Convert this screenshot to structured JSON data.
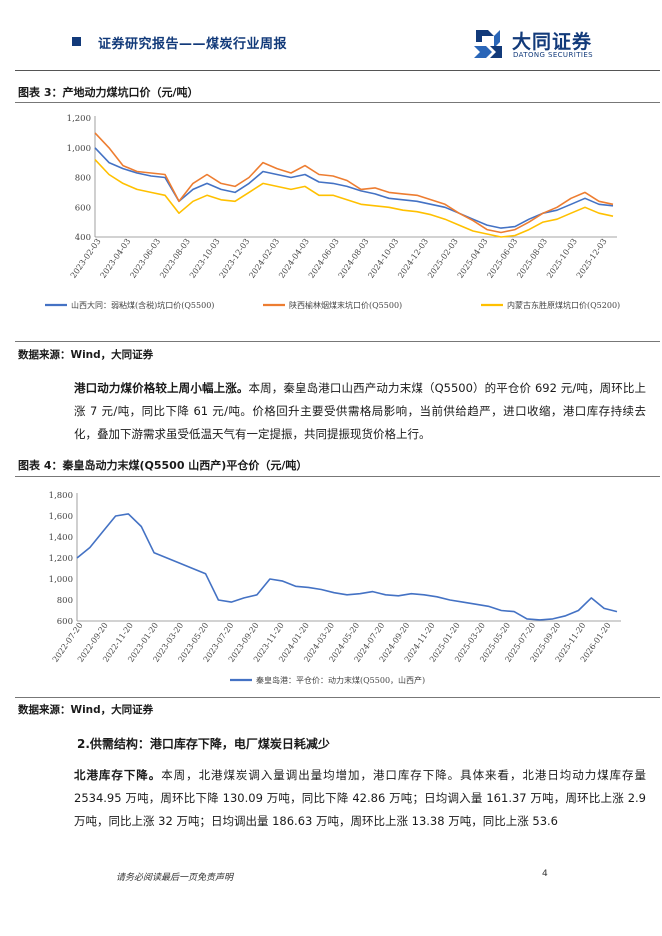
{
  "header": {
    "report_type": "证券研究报告——煤炭行业周报",
    "logo_name": "大同证券",
    "logo_en": "DATONG SECURITIES"
  },
  "figure3": {
    "title": "图表 3：产地动力煤坑口价（元/吨）",
    "source": "数据来源：Wind，大同证券"
  },
  "paragraph1": {
    "lead": "港口动力煤价格较上周小幅上涨。",
    "body": "本周，秦皇岛港口山西产动力末煤（Q5500）的平仓价 692 元/吨，周环比上涨 7 元/吨，同比下降 61 元/吨。价格回升主要受供需格局影响，当前供给趋严，进口收缩，港口库存持续去化，叠加下游需求虽受低温天气有一定提振，共同提振现货价格上行。"
  },
  "figure4": {
    "title": "图表 4：秦皇岛动力末煤(Q5500 山西产)平仓价（元/吨）",
    "source": "数据来源：Wind，大同证券"
  },
  "section2": {
    "heading": "2.供需结构：港口库存下降，电厂煤炭日耗减少"
  },
  "paragraph2": {
    "lead": "北港库存下降。",
    "body": "本周，北港煤炭调入量调出量均增加，港口库存下降。具体来看，北港日均动力煤库存量 2534.95 万吨，周环比下降 130.09 万吨，同比下降 42.86 万吨；日均调入量 161.37 万吨，周环比上涨 2.9 万吨，同比上涨 32 万吨；日均调出量 186.63 万吨，周环比上涨 13.38 万吨，同比上涨 53.6"
  },
  "footer": {
    "disclaimer": "请务必阅读最后一页免责声明",
    "page": "4"
  },
  "chart_data": [
    {
      "type": "line",
      "y_ticks": [
        "1,200",
        "1,000",
        "800",
        "600",
        "400"
      ],
      "ylim": [
        400,
        1200
      ],
      "grid": false,
      "legend_position": "bottom",
      "x_ticks": [
        "2023-02-03",
        "2023-04-03",
        "2023-06-03",
        "2023-08-03",
        "2023-10-03",
        "2023-12-03",
        "2024-02-03",
        "2024-04-03",
        "2024-06-03",
        "2024-08-03",
        "2024-10-03",
        "2024-12-03",
        "2025-02-03",
        "2025-04-03",
        "2025-06-03",
        "2025-08-03",
        "2025-10-03",
        "2025-12-03"
      ],
      "x": [
        0,
        1,
        2,
        3,
        4,
        5,
        6,
        7,
        8,
        9,
        10,
        11,
        12,
        13,
        14,
        15,
        16,
        17,
        18,
        19,
        20,
        21,
        22,
        23,
        24,
        25,
        26,
        27,
        28,
        29,
        30,
        31,
        32,
        33,
        34,
        35,
        36,
        37
      ],
      "series": [
        {
          "name": "山西大同：弱粘煤(含税)坑口价(Q5500)",
          "color": "#4472c4",
          "values": [
            1000,
            900,
            860,
            830,
            810,
            800,
            640,
            720,
            760,
            720,
            700,
            760,
            840,
            820,
            800,
            820,
            770,
            760,
            740,
            710,
            690,
            660,
            650,
            640,
            620,
            600,
            560,
            520,
            480,
            460,
            470,
            520,
            560,
            580,
            620,
            660,
            620,
            610
          ]
        },
        {
          "name": "陕西榆林烟煤末坑口价(Q5500)",
          "color": "#ed7d31",
          "values": [
            1100,
            1000,
            880,
            840,
            830,
            820,
            640,
            760,
            820,
            760,
            740,
            800,
            900,
            860,
            830,
            880,
            820,
            810,
            780,
            720,
            730,
            700,
            690,
            680,
            650,
            620,
            560,
            510,
            450,
            430,
            450,
            500,
            560,
            600,
            660,
            700,
            640,
            620
          ]
        },
        {
          "name": "内蒙古东胜原煤坑口价(Q5200)",
          "color": "#ffc000",
          "values": [
            920,
            820,
            760,
            720,
            700,
            680,
            560,
            640,
            680,
            650,
            640,
            700,
            760,
            740,
            720,
            740,
            680,
            680,
            650,
            620,
            610,
            600,
            580,
            570,
            550,
            520,
            480,
            440,
            420,
            400,
            410,
            450,
            500,
            520,
            560,
            600,
            560,
            540
          ]
        }
      ]
    },
    {
      "type": "line",
      "y_ticks": [
        "1,800",
        "1,600",
        "1,400",
        "1,200",
        "1,000",
        "800",
        "600"
      ],
      "ylim": [
        600,
        1800
      ],
      "grid": false,
      "legend_position": "bottom",
      "x_ticks": [
        "2022-07-20",
        "2022-09-20",
        "2022-11-20",
        "2023-01-20",
        "2023-03-20",
        "2023-05-20",
        "2023-07-20",
        "2023-09-20",
        "2023-11-20",
        "2024-01-20",
        "2024-03-20",
        "2024-05-20",
        "2024-07-20",
        "2024-09-20",
        "2024-11-20",
        "2025-01-20",
        "2025-03-20",
        "2025-05-20",
        "2025-07-20",
        "2025-09-20",
        "2025-11-20",
        "2026-01-20"
      ],
      "x": [
        0,
        1,
        2,
        3,
        4,
        5,
        6,
        7,
        8,
        9,
        10,
        11,
        12,
        13,
        14,
        15,
        16,
        17,
        18,
        19,
        20,
        21,
        22,
        23,
        24,
        25,
        26,
        27,
        28,
        29,
        30,
        31,
        32,
        33,
        34,
        35,
        36,
        37,
        38,
        39,
        40,
        41,
        42
      ],
      "series": [
        {
          "name": "秦皇岛港：平仓价：动力末煤(Q5500，山西产)",
          "color": "#4472c4",
          "values": [
            1200,
            1300,
            1450,
            1600,
            1620,
            1500,
            1250,
            1200,
            1150,
            1100,
            1050,
            800,
            780,
            820,
            850,
            1000,
            980,
            930,
            920,
            900,
            870,
            850,
            860,
            880,
            850,
            840,
            860,
            850,
            830,
            800,
            780,
            760,
            740,
            700,
            690,
            620,
            610,
            620,
            650,
            700,
            820,
            720,
            690
          ]
        }
      ]
    }
  ]
}
